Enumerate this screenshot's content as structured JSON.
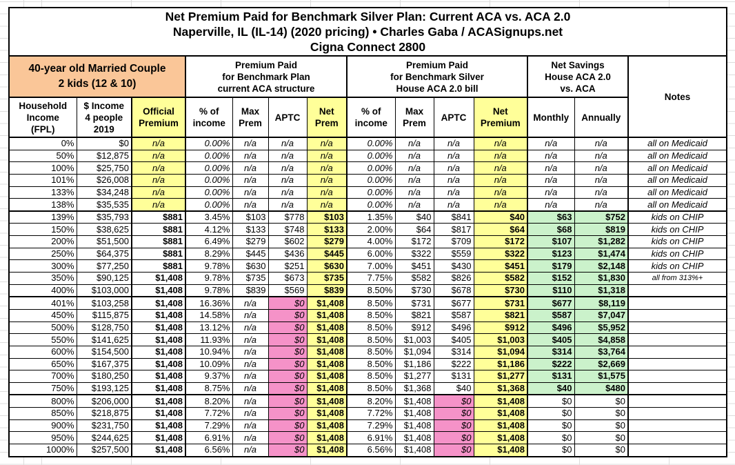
{
  "colors": {
    "peach": "#FAC698",
    "yellow": "#FFFF99",
    "pink": "#F592C8",
    "green": "#CBF2CB",
    "grid": "#DCDCDC",
    "border": "#000000"
  },
  "title": {
    "line1": "Net Premium Paid for Benchmark Silver Plan: Current ACA vs. ACA 2.0",
    "line2": "Naperville, IL (IL-14) (2020 pricing) • Charles Gaba / ACASignups.net",
    "line3": "Cigna Connect 2800"
  },
  "group_headers": {
    "household": "40-year old Married Couple\n2 kids (12 & 10)",
    "current_aca": "Premium Paid\nfor Benchmark Plan\ncurrent ACA structure",
    "aca20": "Premium Paid\nfor Benchmark Silver\nHouse ACA 2.0 bill",
    "net_savings": "Net Savings\nHouse ACA 2.0\nvs. ACA",
    "notes": "Notes"
  },
  "column_headers": [
    "Household\nIncome\n(FPL)",
    "$ Income\n4 people\n2019",
    "Official\nPremium",
    "% of\nincome",
    "Max\nPrem",
    "APTC",
    "Net\nPrem",
    "% of\nincome",
    "Max\nPrem",
    "APTC",
    "Net\nPremium",
    "Monthly",
    "Annually"
  ],
  "chart_data": {
    "type": "table",
    "title": "Net Premium Paid for Benchmark Silver Plan: Current ACA vs. ACA 2.0",
    "subtitle": "Naperville, IL (IL-14) (2020 pricing) • Charles Gaba / ACASignups.net • Cigna Connect 2800",
    "columns": [
      "Household Income (FPL)",
      "$ Income 4 people 2019",
      "Official Premium",
      "% of income (current ACA)",
      "Max Prem (current ACA)",
      "APTC (current ACA)",
      "Net Prem (current ACA)",
      "% of income (ACA 2.0)",
      "Max Prem (ACA 2.0)",
      "APTC (ACA 2.0)",
      "Net Premium (ACA 2.0)",
      "Net Savings Monthly",
      "Net Savings Annually",
      "Notes"
    ],
    "rows": [
      {
        "section": 1,
        "cells": [
          "0%",
          "$0",
          "n/a",
          "0.00%",
          "n/a",
          "n/a",
          "n/a",
          "0.00%",
          "n/a",
          "n/a",
          "n/a",
          "n/a",
          "n/a",
          "all on Medicaid"
        ]
      },
      {
        "section": 1,
        "cells": [
          "50%",
          "$12,875",
          "n/a",
          "0.00%",
          "n/a",
          "n/a",
          "n/a",
          "0.00%",
          "n/a",
          "n/a",
          "n/a",
          "n/a",
          "n/a",
          "all on Medicaid"
        ]
      },
      {
        "section": 1,
        "cells": [
          "100%",
          "$25,750",
          "n/a",
          "0.00%",
          "n/a",
          "n/a",
          "n/a",
          "0.00%",
          "n/a",
          "n/a",
          "n/a",
          "n/a",
          "n/a",
          "all on Medicaid"
        ]
      },
      {
        "section": 1,
        "cells": [
          "101%",
          "$26,008",
          "n/a",
          "0.00%",
          "n/a",
          "n/a",
          "n/a",
          "0.00%",
          "n/a",
          "n/a",
          "n/a",
          "n/a",
          "n/a",
          "all on Medicaid"
        ]
      },
      {
        "section": 1,
        "cells": [
          "133%",
          "$34,248",
          "n/a",
          "0.00%",
          "n/a",
          "n/a",
          "n/a",
          "0.00%",
          "n/a",
          "n/a",
          "n/a",
          "n/a",
          "n/a",
          "all on Medicaid"
        ]
      },
      {
        "section": 1,
        "cells": [
          "138%",
          "$35,535",
          "n/a",
          "0.00%",
          "n/a",
          "n/a",
          "n/a",
          "0.00%",
          "n/a",
          "n/a",
          "n/a",
          "n/a",
          "n/a",
          "all on Medicaid"
        ]
      },
      {
        "section": 2,
        "cells": [
          "139%",
          "$35,793",
          "$881",
          "3.45%",
          "$103",
          "$778",
          "$103",
          "1.35%",
          "$40",
          "$841",
          "$40",
          "$63",
          "$752",
          "kids on CHIP"
        ]
      },
      {
        "section": 2,
        "cells": [
          "150%",
          "$38,625",
          "$881",
          "4.12%",
          "$133",
          "$748",
          "$133",
          "2.00%",
          "$64",
          "$817",
          "$64",
          "$68",
          "$819",
          "kids on CHIP"
        ]
      },
      {
        "section": 2,
        "cells": [
          "200%",
          "$51,500",
          "$881",
          "6.49%",
          "$279",
          "$602",
          "$279",
          "4.00%",
          "$172",
          "$709",
          "$172",
          "$107",
          "$1,282",
          "kids on CHIP"
        ]
      },
      {
        "section": 2,
        "cells": [
          "250%",
          "$64,375",
          "$881",
          "8.29%",
          "$445",
          "$436",
          "$445",
          "6.00%",
          "$322",
          "$559",
          "$322",
          "$123",
          "$1,474",
          "kids on CHIP"
        ]
      },
      {
        "section": 2,
        "cells": [
          "300%",
          "$77,250",
          "$881",
          "9.78%",
          "$630",
          "$251",
          "$630",
          "7.00%",
          "$451",
          "$430",
          "$451",
          "$179",
          "$2,148",
          "kids on CHIP"
        ]
      },
      {
        "section": 2,
        "cells": [
          "350%",
          "$90,125",
          "$1,408",
          "9.78%",
          "$735",
          "$673",
          "$735",
          "7.75%",
          "$582",
          "$826",
          "$582",
          "$152",
          "$1,830",
          "all from 313%+"
        ]
      },
      {
        "section": 2,
        "cells": [
          "400%",
          "$103,000",
          "$1,408",
          "9.78%",
          "$839",
          "$569",
          "$839",
          "8.50%",
          "$730",
          "$678",
          "$730",
          "$110",
          "$1,318",
          ""
        ]
      },
      {
        "section": 3,
        "cells": [
          "401%",
          "$103,258",
          "$1,408",
          "16.36%",
          "n/a",
          "$0",
          "$1,408",
          "8.50%",
          "$731",
          "$677",
          "$731",
          "$677",
          "$8,119",
          ""
        ]
      },
      {
        "section": 3,
        "cells": [
          "450%",
          "$115,875",
          "$1,408",
          "14.58%",
          "n/a",
          "$0",
          "$1,408",
          "8.50%",
          "$821",
          "$587",
          "$821",
          "$587",
          "$7,047",
          ""
        ]
      },
      {
        "section": 3,
        "cells": [
          "500%",
          "$128,750",
          "$1,408",
          "13.12%",
          "n/a",
          "$0",
          "$1,408",
          "8.50%",
          "$912",
          "$496",
          "$912",
          "$496",
          "$5,952",
          ""
        ]
      },
      {
        "section": 3,
        "cells": [
          "550%",
          "$141,625",
          "$1,408",
          "11.93%",
          "n/a",
          "$0",
          "$1,408",
          "8.50%",
          "$1,003",
          "$405",
          "$1,003",
          "$405",
          "$4,858",
          ""
        ]
      },
      {
        "section": 3,
        "cells": [
          "600%",
          "$154,500",
          "$1,408",
          "10.94%",
          "n/a",
          "$0",
          "$1,408",
          "8.50%",
          "$1,094",
          "$314",
          "$1,094",
          "$314",
          "$3,764",
          ""
        ]
      },
      {
        "section": 3,
        "cells": [
          "650%",
          "$167,375",
          "$1,408",
          "10.09%",
          "n/a",
          "$0",
          "$1,408",
          "8.50%",
          "$1,186",
          "$222",
          "$1,186",
          "$222",
          "$2,669",
          ""
        ]
      },
      {
        "section": 3,
        "cells": [
          "700%",
          "$180,250",
          "$1,408",
          "9.37%",
          "n/a",
          "$0",
          "$1,408",
          "8.50%",
          "$1,277",
          "$131",
          "$1,277",
          "$131",
          "$1,575",
          ""
        ]
      },
      {
        "section": 3,
        "cells": [
          "750%",
          "$193,125",
          "$1,408",
          "8.75%",
          "n/a",
          "$0",
          "$1,408",
          "8.50%",
          "$1,368",
          "$40",
          "$1,368",
          "$40",
          "$480",
          ""
        ]
      },
      {
        "section": 4,
        "cells": [
          "800%",
          "$206,000",
          "$1,408",
          "8.20%",
          "n/a",
          "$0",
          "$1,408",
          "8.20%",
          "$1,408",
          "$0",
          "$1,408",
          "$0",
          "$0",
          ""
        ]
      },
      {
        "section": 4,
        "cells": [
          "850%",
          "$218,875",
          "$1,408",
          "7.72%",
          "n/a",
          "$0",
          "$1,408",
          "7.72%",
          "$1,408",
          "$0",
          "$1,408",
          "$0",
          "$0",
          ""
        ]
      },
      {
        "section": 4,
        "cells": [
          "900%",
          "$231,750",
          "$1,408",
          "7.29%",
          "n/a",
          "$0",
          "$1,408",
          "7.29%",
          "$1,408",
          "$0",
          "$1,408",
          "$0",
          "$0",
          ""
        ]
      },
      {
        "section": 4,
        "cells": [
          "950%",
          "$244,625",
          "$1,408",
          "6.91%",
          "n/a",
          "$0",
          "$1,408",
          "6.91%",
          "$1,408",
          "$0",
          "$1,408",
          "$0",
          "$0",
          ""
        ]
      },
      {
        "section": 4,
        "cells": [
          "1000%",
          "$257,500",
          "$1,408",
          "6.56%",
          "n/a",
          "$0",
          "$1,408",
          "6.56%",
          "$1,408",
          "$0",
          "$1,408",
          "$0",
          "$0",
          ""
        ]
      }
    ]
  }
}
